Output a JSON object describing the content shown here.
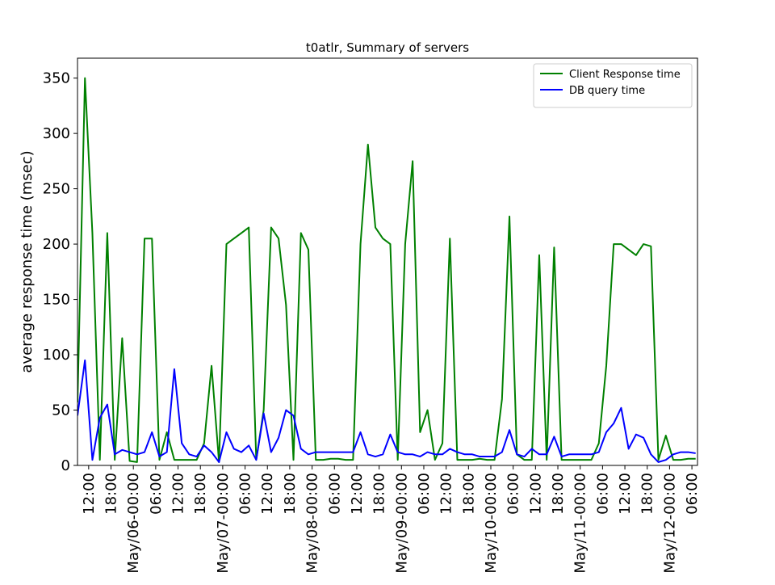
{
  "chart_data": {
    "type": "line",
    "title": "t0atlr, Summary of servers",
    "y_label": "average response time (msec)",
    "x": [
      "May/05-09:00",
      "May/05-11:00",
      "May/05-13:00",
      "May/05-15:00",
      "May/05-17:00",
      "May/05-19:00",
      "May/05-21:00",
      "May/05-23:00",
      "May/06-01:00",
      "May/06-03:00",
      "May/06-05:00",
      "May/06-07:00",
      "May/06-09:00",
      "May/06-11:00",
      "May/06-13:00",
      "May/06-15:00",
      "May/06-17:00",
      "May/06-19:00",
      "May/06-21:00",
      "May/06-23:00",
      "May/07-01:00",
      "May/07-03:00",
      "May/07-05:00",
      "May/07-07:00",
      "May/07-09:00",
      "May/07-11:00",
      "May/07-13:00",
      "May/07-15:00",
      "May/07-17:00",
      "May/07-19:00",
      "May/07-21:00",
      "May/07-23:00",
      "May/08-01:00",
      "May/08-03:00",
      "May/08-05:00",
      "May/08-07:00",
      "May/08-09:00",
      "May/08-11:00",
      "May/08-13:00",
      "May/08-15:00",
      "May/08-17:00",
      "May/08-19:00",
      "May/08-21:00",
      "May/08-23:00",
      "May/09-01:00",
      "May/09-03:00",
      "May/09-05:00",
      "May/09-07:00",
      "May/09-09:00",
      "May/09-11:00",
      "May/09-13:00",
      "May/09-15:00",
      "May/09-17:00",
      "May/09-19:00",
      "May/09-21:00",
      "May/09-23:00",
      "May/10-01:00",
      "May/10-03:00",
      "May/10-05:00",
      "May/10-07:00",
      "May/10-09:00",
      "May/10-11:00",
      "May/10-13:00",
      "May/10-15:00",
      "May/10-17:00",
      "May/10-19:00",
      "May/10-21:00",
      "May/10-23:00",
      "May/11-01:00",
      "May/11-03:00",
      "May/11-05:00",
      "May/11-07:00",
      "May/11-09:00",
      "May/11-11:00",
      "May/11-13:00",
      "May/11-15:00",
      "May/11-17:00",
      "May/11-19:00",
      "May/11-21:00",
      "May/11-23:00",
      "May/12-01:00",
      "May/12-03:00",
      "May/12-05:00",
      "May/12-07:00"
    ],
    "series": [
      {
        "name": "Client Response time",
        "color": "#008000",
        "values": [
          57,
          350,
          210,
          5,
          210,
          5,
          115,
          4,
          3,
          205,
          205,
          5,
          30,
          5,
          5,
          5,
          5,
          20,
          90,
          3,
          200,
          205,
          210,
          215,
          5,
          50,
          215,
          205,
          145,
          5,
          210,
          195,
          5,
          5,
          6,
          6,
          5,
          5,
          200,
          290,
          215,
          205,
          200,
          5,
          200,
          275,
          30,
          50,
          5,
          20,
          205,
          5,
          5,
          5,
          6,
          5,
          5,
          60,
          225,
          10,
          5,
          5,
          190,
          5,
          197,
          5,
          5,
          5,
          5,
          5,
          20,
          90,
          200,
          200,
          195,
          190,
          200,
          198,
          5,
          27,
          5,
          5,
          6,
          6
        ]
      },
      {
        "name": "DB query time",
        "color": "#0000ff",
        "values": [
          45,
          95,
          5,
          43,
          55,
          10,
          14,
          12,
          10,
          12,
          30,
          8,
          12,
          87,
          20,
          10,
          8,
          18,
          12,
          3,
          30,
          15,
          12,
          18,
          5,
          47,
          12,
          25,
          50,
          45,
          15,
          10,
          12,
          12,
          12,
          12,
          12,
          12,
          30,
          10,
          8,
          10,
          28,
          12,
          10,
          10,
          8,
          12,
          10,
          10,
          15,
          12,
          10,
          10,
          8,
          8,
          8,
          12,
          32,
          10,
          8,
          15,
          10,
          10,
          26,
          8,
          10,
          10,
          10,
          10,
          12,
          30,
          38,
          52,
          15,
          28,
          25,
          10,
          3,
          5,
          10,
          12,
          12,
          11
        ]
      }
    ],
    "xlim": [
      "May/05-09:00",
      "May/12-07:30"
    ],
    "xticks": [
      {
        "value": "May/05-12:00",
        "label": "12:00"
      },
      {
        "value": "May/05-18:00",
        "label": "18:00"
      },
      {
        "value": "May/06-00:00",
        "label": "May/06-00:00"
      },
      {
        "value": "May/06-06:00",
        "label": "06:00"
      },
      {
        "value": "May/06-12:00",
        "label": "12:00"
      },
      {
        "value": "May/06-18:00",
        "label": "18:00"
      },
      {
        "value": "May/07-00:00",
        "label": "May/07-00:00"
      },
      {
        "value": "May/07-06:00",
        "label": "06:00"
      },
      {
        "value": "May/07-12:00",
        "label": "12:00"
      },
      {
        "value": "May/07-18:00",
        "label": "18:00"
      },
      {
        "value": "May/08-00:00",
        "label": "May/08-00:00"
      },
      {
        "value": "May/08-06:00",
        "label": "06:00"
      },
      {
        "value": "May/08-12:00",
        "label": "12:00"
      },
      {
        "value": "May/08-18:00",
        "label": "18:00"
      },
      {
        "value": "May/09-00:00",
        "label": "May/09-00:00"
      },
      {
        "value": "May/09-06:00",
        "label": "06:00"
      },
      {
        "value": "May/09-12:00",
        "label": "12:00"
      },
      {
        "value": "May/09-18:00",
        "label": "18:00"
      },
      {
        "value": "May/10-00:00",
        "label": "May/10-00:00"
      },
      {
        "value": "May/10-06:00",
        "label": "06:00"
      },
      {
        "value": "May/10-12:00",
        "label": "12:00"
      },
      {
        "value": "May/10-18:00",
        "label": "18:00"
      },
      {
        "value": "May/11-00:00",
        "label": "May/11-00:00"
      },
      {
        "value": "May/11-06:00",
        "label": "06:00"
      },
      {
        "value": "May/11-12:00",
        "label": "12:00"
      },
      {
        "value": "May/11-18:00",
        "label": "18:00"
      },
      {
        "value": "May/12-00:00",
        "label": "May/12-00:00"
      },
      {
        "value": "May/12-06:00",
        "label": "06:00"
      }
    ],
    "ylim": [
      0,
      368
    ],
    "yticks": [
      0,
      50,
      100,
      150,
      200,
      250,
      300,
      350
    ],
    "legend": "upper right"
  }
}
